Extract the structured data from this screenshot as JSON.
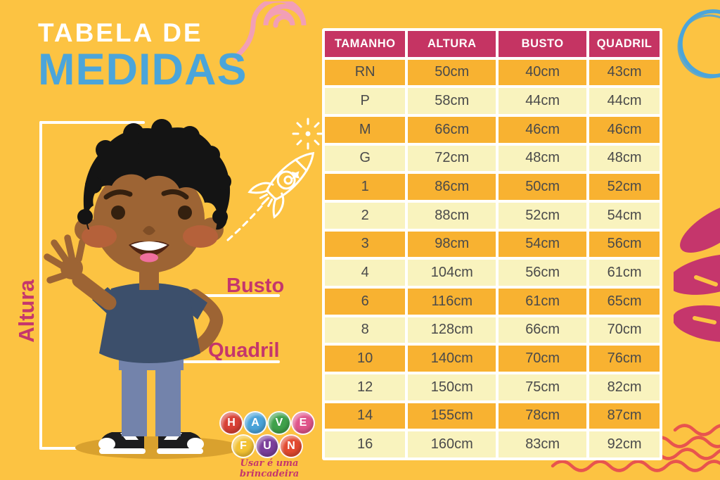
{
  "title": {
    "line1": "TABELA DE",
    "line2": "MEDIDAS"
  },
  "measure_labels": {
    "height": "Altura",
    "bust": "Busto",
    "hip": "Quadril"
  },
  "table": {
    "headers": [
      "TAMANHO",
      "ALTURA",
      "BUSTO",
      "QUADRIL"
    ],
    "rows": [
      [
        "RN",
        "50cm",
        "40cm",
        "43cm"
      ],
      [
        "P",
        "58cm",
        "44cm",
        "44cm"
      ],
      [
        "M",
        "66cm",
        "46cm",
        "46cm"
      ],
      [
        "G",
        "72cm",
        "48cm",
        "48cm"
      ],
      [
        "1",
        "86cm",
        "50cm",
        "52cm"
      ],
      [
        "2",
        "88cm",
        "52cm",
        "54cm"
      ],
      [
        "3",
        "98cm",
        "54cm",
        "56cm"
      ],
      [
        "4",
        "104cm",
        "56cm",
        "61cm"
      ],
      [
        "6",
        "116cm",
        "61cm",
        "65cm"
      ],
      [
        "8",
        "128cm",
        "66cm",
        "70cm"
      ],
      [
        "10",
        "140cm",
        "70cm",
        "76cm"
      ],
      [
        "12",
        "150cm",
        "75cm",
        "82cm"
      ],
      [
        "14",
        "155cm",
        "78cm",
        "87cm"
      ],
      [
        "16",
        "160cm",
        "83cm",
        "92cm"
      ]
    ]
  },
  "logo": {
    "balls": [
      {
        "letter": "H",
        "color": "#d84136"
      },
      {
        "letter": "A",
        "color": "#4aa3d9"
      },
      {
        "letter": "V",
        "color": "#3fa14b"
      },
      {
        "letter": "E",
        "color": "#e0558b"
      },
      {
        "letter": "F",
        "color": "#f2c233"
      },
      {
        "letter": "U",
        "color": "#7b3f9b"
      },
      {
        "letter": "N",
        "color": "#e2492f"
      }
    ],
    "tagline": "Usar é uma brincadeira"
  },
  "colors": {
    "background": "#fcc342",
    "table_header": "#c53463",
    "row_orange": "#f8b231",
    "row_cream": "#f9f3be",
    "title_blue": "#4ba5da",
    "label_pink": "#c5366c",
    "wave_red": "#e8544e"
  }
}
